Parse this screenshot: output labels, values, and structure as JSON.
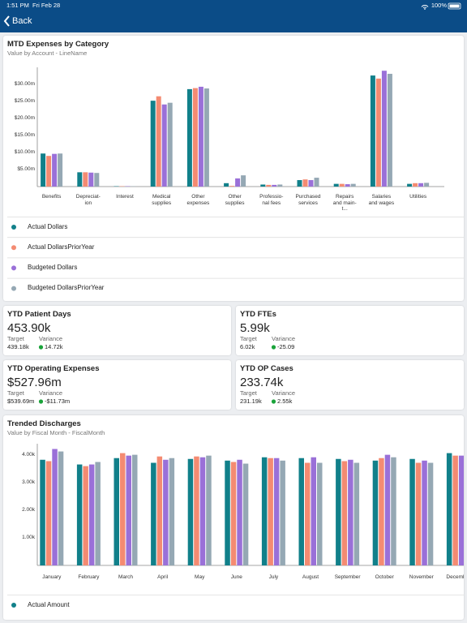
{
  "status_bar": {
    "time": "1:51 PM",
    "date": "Fri Feb 28",
    "battery": "100%"
  },
  "nav": {
    "back": "Back"
  },
  "chart_data": [
    {
      "type": "bar",
      "title": "MTD Expenses by Category",
      "subtitle": "Value by Account - LineName",
      "categories": [
        "Benefits",
        "Depreciat-\nion",
        "Interest",
        "Medical\nsupplies",
        "Other\nexpenses",
        "Other\nsupplies",
        "Professio-\nnal fees",
        "Purchased\nservices",
        "Repairs\nand main-\nt...",
        "Salaries\nand wages",
        "Utilities"
      ],
      "series": [
        {
          "name": "Actual Dollars",
          "color": "#11808a",
          "values": [
            9.7,
            4.2,
            0.1,
            25.2,
            28.6,
            1.0,
            0.6,
            1.9,
            0.8,
            32.6,
            0.8
          ]
        },
        {
          "name": "Actual DollarsPriorYear",
          "color": "#f48b72",
          "values": [
            9.0,
            4.2,
            0.1,
            26.5,
            28.9,
            0.2,
            0.5,
            2.1,
            0.8,
            31.7,
            1.0
          ]
        },
        {
          "name": "Budgeted Dollars",
          "color": "#9a70d8",
          "values": [
            9.6,
            4.1,
            0.1,
            24.1,
            29.3,
            2.4,
            0.5,
            1.9,
            0.7,
            34.0,
            1.0
          ]
        },
        {
          "name": "Budgeted DollarsPriorYear",
          "color": "#95a8b4",
          "values": [
            9.7,
            4.0,
            0.1,
            24.6,
            28.8,
            3.3,
            0.6,
            2.6,
            0.8,
            33.1,
            1.1
          ]
        }
      ],
      "ylim": [
        0,
        35
      ],
      "yticks": [
        {
          "value": 5,
          "label": "$5.00m"
        },
        {
          "value": 10,
          "label": "$10.00m"
        },
        {
          "value": 15,
          "label": "$15.00m"
        },
        {
          "value": 20,
          "label": "$20.00m"
        },
        {
          "value": 25,
          "label": "$25.00m"
        },
        {
          "value": 30,
          "label": "$30.00m"
        }
      ],
      "grid": false,
      "legend": "bottom"
    },
    {
      "type": "bar",
      "title": "Trended Discharges",
      "subtitle": "Value by Fiscal Month - FiscalMonth",
      "categories": [
        "January",
        "February",
        "March",
        "April",
        "May",
        "June",
        "July",
        "August",
        "September",
        "October",
        "November",
        "December"
      ],
      "series": [
        {
          "name": "Actual Amount",
          "color": "#11808a",
          "values": [
            3820,
            3650,
            3880,
            3710,
            3850,
            3790,
            3910,
            3880,
            3850,
            3790,
            3850,
            4060
          ]
        },
        {
          "color": "#f48b72",
          "values": [
            3770,
            3590,
            4060,
            3940,
            3940,
            3740,
            3880,
            3710,
            3770,
            3880,
            3710,
            3970
          ]
        },
        {
          "color": "#9a70d8",
          "values": [
            4210,
            3650,
            3970,
            3820,
            3910,
            3820,
            3880,
            3910,
            3820,
            4000,
            3790,
            3970
          ]
        },
        {
          "color": "#95a8b4",
          "values": [
            4120,
            3740,
            4000,
            3880,
            3970,
            3680,
            3790,
            3710,
            3710,
            3910,
            3710,
            3900
          ]
        }
      ],
      "ylim": [
        0,
        4400
      ],
      "yticks": [
        {
          "value": 1000,
          "label": "1.00k"
        },
        {
          "value": 2000,
          "label": "2.00k"
        },
        {
          "value": 3000,
          "label": "3.00k"
        },
        {
          "value": 4000,
          "label": "4.00k"
        }
      ],
      "grid": false,
      "legend": "bottom"
    }
  ],
  "kpis": [
    {
      "title": "YTD Patient Days",
      "value": "453.90k",
      "target_label": "Target",
      "target": "439.18k",
      "variance_label": "Variance",
      "variance": "14.72k"
    },
    {
      "title": "YTD FTEs",
      "value": "5.99k",
      "target_label": "Target",
      "target": "6.02k",
      "variance_label": "Variance",
      "variance": "-25.09"
    },
    {
      "title": "YTD Operating Expenses",
      "value": "$527.96m",
      "target_label": "Target",
      "target": "$539.69m",
      "variance_label": "Variance",
      "variance": "-$11.73m"
    },
    {
      "title": "YTD OP Cases",
      "value": "233.74k",
      "target_label": "Target",
      "target": "231.19k",
      "variance_label": "Variance",
      "variance": "2.55k"
    }
  ]
}
